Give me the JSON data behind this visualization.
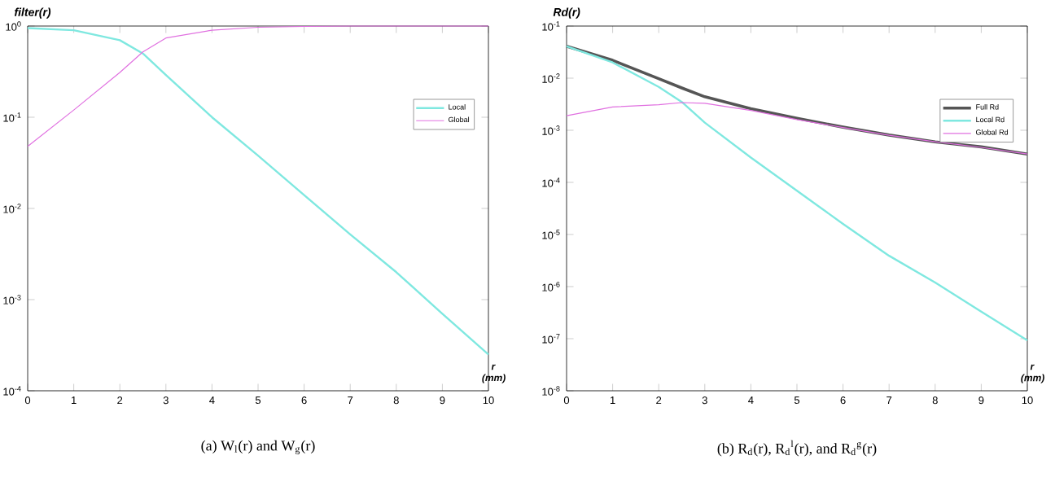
{
  "chart_data": [
    {
      "type": "line",
      "ylabel": "filter(r)",
      "xlabel": "r (mm)",
      "log": true,
      "legend": "top right",
      "annotations": [
        "(a) W$_{l}$(r) and W$_{g}$(r)"
      ],
      "x": [
        0,
        1,
        2,
        2.5,
        3,
        4,
        5,
        6,
        7,
        8,
        9,
        10
      ],
      "xlim": [
        0,
        10
      ],
      "xticks": [
        0,
        1,
        2,
        3,
        4,
        5,
        6,
        7,
        8,
        9,
        10
      ],
      "ylim": [
        0.0001,
        1
      ],
      "yticks": [
        {
          "value": 0.0001,
          "label": "10$^{-4}$"
        },
        {
          "value": 0.001,
          "label": "10$^{-3}$"
        },
        {
          "value": 0.01,
          "label": "10$^{-2}$"
        },
        {
          "value": 0.1,
          "label": "10$^{-1}$"
        },
        {
          "value": 1,
          "label": "10$^{0}$"
        }
      ],
      "series": [
        {
          "name": "Local",
          "color": "#7fe8e0",
          "values": [
            0.95,
            0.9,
            0.7,
            0.5,
            0.29,
            0.1,
            0.038,
            0.014,
            0.0052,
            0.002,
            0.0007,
            0.00025
          ]
        },
        {
          "name": "Global",
          "color": "#e070e0",
          "values": [
            0.048,
            0.12,
            0.31,
            0.52,
            0.74,
            0.9,
            0.97,
            0.99,
            1,
            1,
            1,
            1
          ]
        }
      ]
    },
    {
      "type": "line",
      "ylabel": "Rd(r)",
      "xlabel": "r (mm)",
      "log": true,
      "legend": "top right",
      "annotations": [
        "(b) R$_{d}$(r), R$_{d}$$^{l}$(r), and R$_{d}$$^{g}$(r)"
      ],
      "x": [
        0,
        1,
        2,
        2.5,
        3,
        4,
        5,
        6,
        7,
        8,
        9,
        10
      ],
      "xlim": [
        0,
        10
      ],
      "xticks": [
        0,
        1,
        2,
        3,
        4,
        5,
        6,
        7,
        8,
        9,
        10
      ],
      "ylim": [
        1e-08,
        0.1
      ],
      "yticks": [
        {
          "value": 1e-08,
          "label": "10$^{-8}$"
        },
        {
          "value": 1e-07,
          "label": "10$^{-7}$"
        },
        {
          "value": 1e-06,
          "label": "10$^{-6}$"
        },
        {
          "value": 1e-05,
          "label": "10$^{-5}$"
        },
        {
          "value": 0.0001,
          "label": "10$^{-4}$"
        },
        {
          "value": 0.001,
          "label": "10$^{-3}$"
        },
        {
          "value": 0.01,
          "label": "10$^{-2}$"
        },
        {
          "value": 0.1,
          "label": "10$^{-1}$"
        }
      ],
      "series": [
        {
          "name": "Full    Rd",
          "color": "#555555",
          "values": [
            0.041,
            0.022,
            0.0098,
            0.0065,
            0.0044,
            0.0026,
            0.0017,
            0.00115,
            0.00081,
            0.0006,
            0.00048,
            0.00035
          ]
        },
        {
          "name": "Local   Rd",
          "color": "#7fe8e0",
          "values": [
            0.041,
            0.02,
            0.0068,
            0.0035,
            0.0014,
            0.0003,
            6.9e-05,
            1.6e-05,
            3.9e-06,
            1.2e-06,
            3.3e-07,
            9.3e-08
          ]
        },
        {
          "name": "Global Rd",
          "color": "#e070e0",
          "values": [
            0.0019,
            0.0028,
            0.0031,
            0.0034,
            0.0033,
            0.0024,
            0.0016,
            0.00113,
            0.0008,
            0.0006,
            0.00047,
            0.00035
          ]
        }
      ]
    }
  ]
}
